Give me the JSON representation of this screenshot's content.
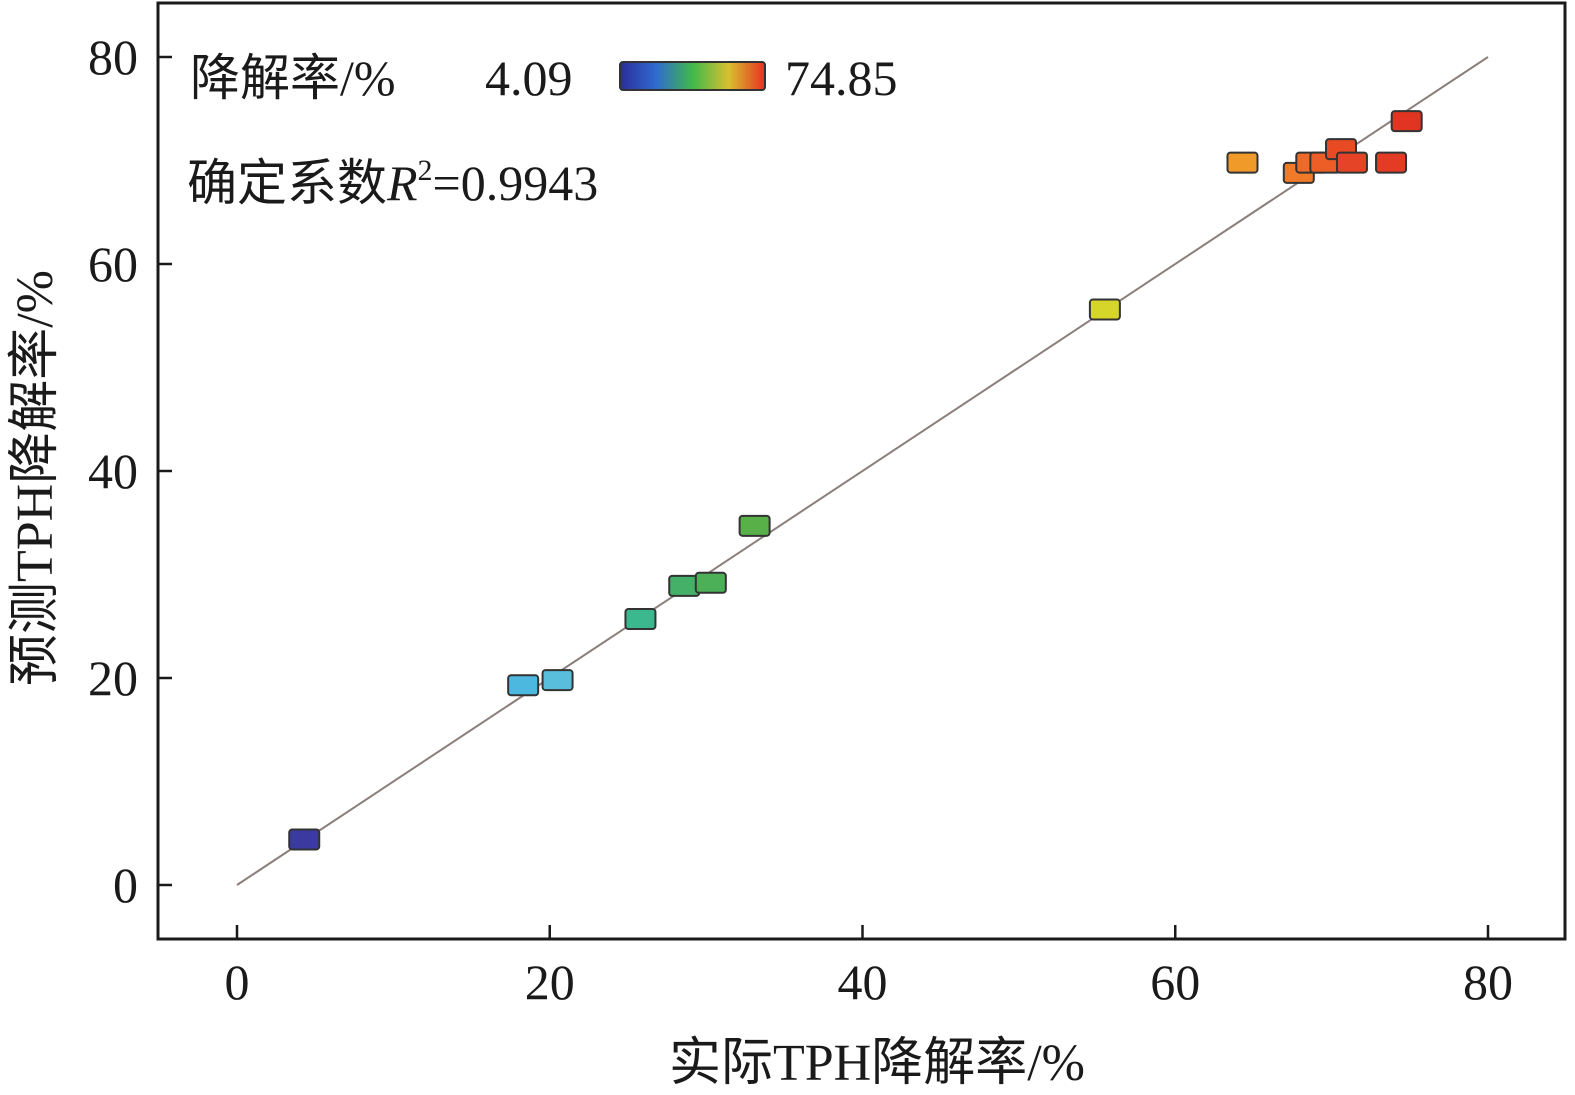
{
  "chart_data": {
    "type": "scatter",
    "xlabel": "实际TPH降解率/%",
    "ylabel": "预测TPH降解率/%",
    "xlim": [
      -5,
      85
    ],
    "ylim": [
      -5,
      85
    ],
    "xticks": [
      0,
      20,
      40,
      60,
      80
    ],
    "yticks": [
      0,
      20,
      40,
      60,
      80
    ],
    "grid": false,
    "reference_line": {
      "from": [
        0,
        0
      ],
      "to": [
        80,
        80
      ],
      "color": "#8a7f7a"
    },
    "colorbar": {
      "label": "降解率/%",
      "min_label": "4.09",
      "max_label": "74.85",
      "min": 4.09,
      "max": 74.85,
      "colors": [
        "#2a2d9a",
        "#2f6bd0",
        "#40b84a",
        "#d8c030",
        "#e83020"
      ]
    },
    "annotation": {
      "prefix": "确定系数",
      "var": "R",
      "sup": "2",
      "value": "=0.9943"
    },
    "points": [
      {
        "x": 4.3,
        "y": 4.4,
        "color": "#3a3aa0"
      },
      {
        "x": 18.3,
        "y": 19.3,
        "color": "#4cb8e0"
      },
      {
        "x": 20.5,
        "y": 19.8,
        "color": "#58bedc"
      },
      {
        "x": 25.8,
        "y": 25.7,
        "color": "#3cb88e"
      },
      {
        "x": 28.6,
        "y": 28.9,
        "color": "#44b068"
      },
      {
        "x": 30.3,
        "y": 29.2,
        "color": "#4cb058"
      },
      {
        "x": 33.1,
        "y": 34.7,
        "color": "#58b048"
      },
      {
        "x": 55.5,
        "y": 55.6,
        "color": "#d6d62a"
      },
      {
        "x": 64.3,
        "y": 69.8,
        "color": "#f09a2a"
      },
      {
        "x": 67.9,
        "y": 68.8,
        "color": "#f07a28"
      },
      {
        "x": 68.7,
        "y": 69.8,
        "color": "#ee6a28"
      },
      {
        "x": 69.6,
        "y": 69.8,
        "color": "#ec5e26"
      },
      {
        "x": 70.6,
        "y": 71.1,
        "color": "#e84a24"
      },
      {
        "x": 71.3,
        "y": 69.8,
        "color": "#e64426"
      },
      {
        "x": 73.8,
        "y": 69.8,
        "color": "#e43c24"
      },
      {
        "x": 74.8,
        "y": 73.8,
        "color": "#e23422"
      }
    ]
  }
}
